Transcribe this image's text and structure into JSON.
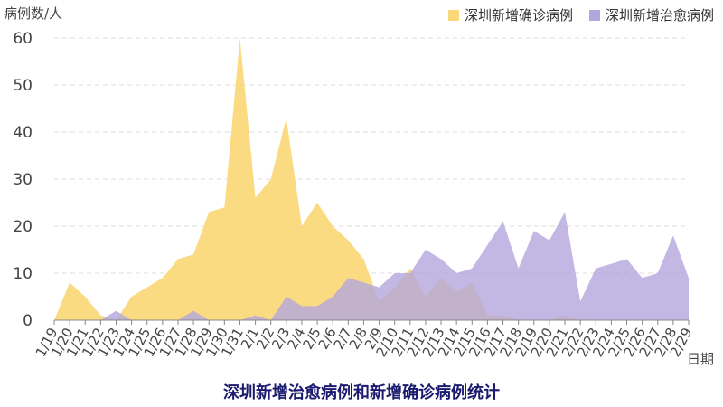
{
  "chart_data": {
    "type": "area",
    "title": "深圳新增治愈病例和新增确诊病例统计",
    "ylabel": "病例数/人",
    "xlabel": "日期",
    "ylim": [
      0,
      60
    ],
    "yticks": [
      0,
      10,
      20,
      30,
      40,
      50,
      60
    ],
    "grid": true,
    "legend_position": "top-right",
    "categories": [
      "1/19",
      "1/20",
      "1/21",
      "1/22",
      "1/23",
      "1/24",
      "1/25",
      "1/26",
      "1/27",
      "1/28",
      "1/29",
      "1/30",
      "1/31",
      "2/1",
      "2/2",
      "2/3",
      "2/4",
      "2/5",
      "2/6",
      "2/7",
      "2/8",
      "2/9",
      "2/10",
      "2/11",
      "2/12",
      "2/13",
      "2/14",
      "2/15",
      "2/16",
      "2/17",
      "2/18",
      "2/19",
      "2/20",
      "2/21",
      "2/22",
      "2/23",
      "2/24",
      "2/25",
      "2/26",
      "2/27",
      "2/28",
      "2/29"
    ],
    "series": [
      {
        "name": "深圳新增确诊病例",
        "color": "#fbd97a",
        "values": [
          0,
          8,
          5,
          1,
          0,
          5,
          7,
          9,
          13,
          14,
          23,
          24,
          60,
          26,
          30,
          43,
          20,
          25,
          20,
          17,
          13,
          4,
          7,
          11,
          5,
          9,
          6,
          8,
          1,
          1,
          0,
          0,
          0,
          1,
          0,
          0,
          0,
          0,
          0,
          0,
          0,
          0
        ]
      },
      {
        "name": "深圳新增治愈病例",
        "color": "#b3a6dc",
        "values": [
          0,
          0,
          0,
          0,
          2,
          0,
          0,
          0,
          0,
          2,
          0,
          0,
          0,
          1,
          0,
          5,
          3,
          3,
          5,
          9,
          8,
          7,
          10,
          10,
          15,
          13,
          10,
          11,
          16,
          21,
          11,
          19,
          17,
          23,
          4,
          11,
          12,
          13,
          9,
          10,
          18,
          9
        ]
      }
    ],
    "xtick_labels": [
      "1/19",
      "1/20",
      "1/21",
      "1/22",
      "1/23",
      "1/24",
      "1/25",
      "1/26",
      "1/27",
      "1/28",
      "1/29",
      "1/30",
      "1/31",
      "2/1",
      "2/2",
      "2/3",
      "2/4",
      "2/5",
      "2/6",
      "2/7",
      "2/8",
      "2/9",
      "2/10",
      "2/11",
      "2/12",
      "2/13",
      "2/14",
      "2/15",
      "2/16",
      "2/17",
      "2/18",
      "2/19",
      "2/20",
      "2/21",
      "2/22",
      "2/23",
      "2/24",
      "2/25",
      "2/26",
      "2/27",
      "2/28",
      "2/29"
    ]
  }
}
